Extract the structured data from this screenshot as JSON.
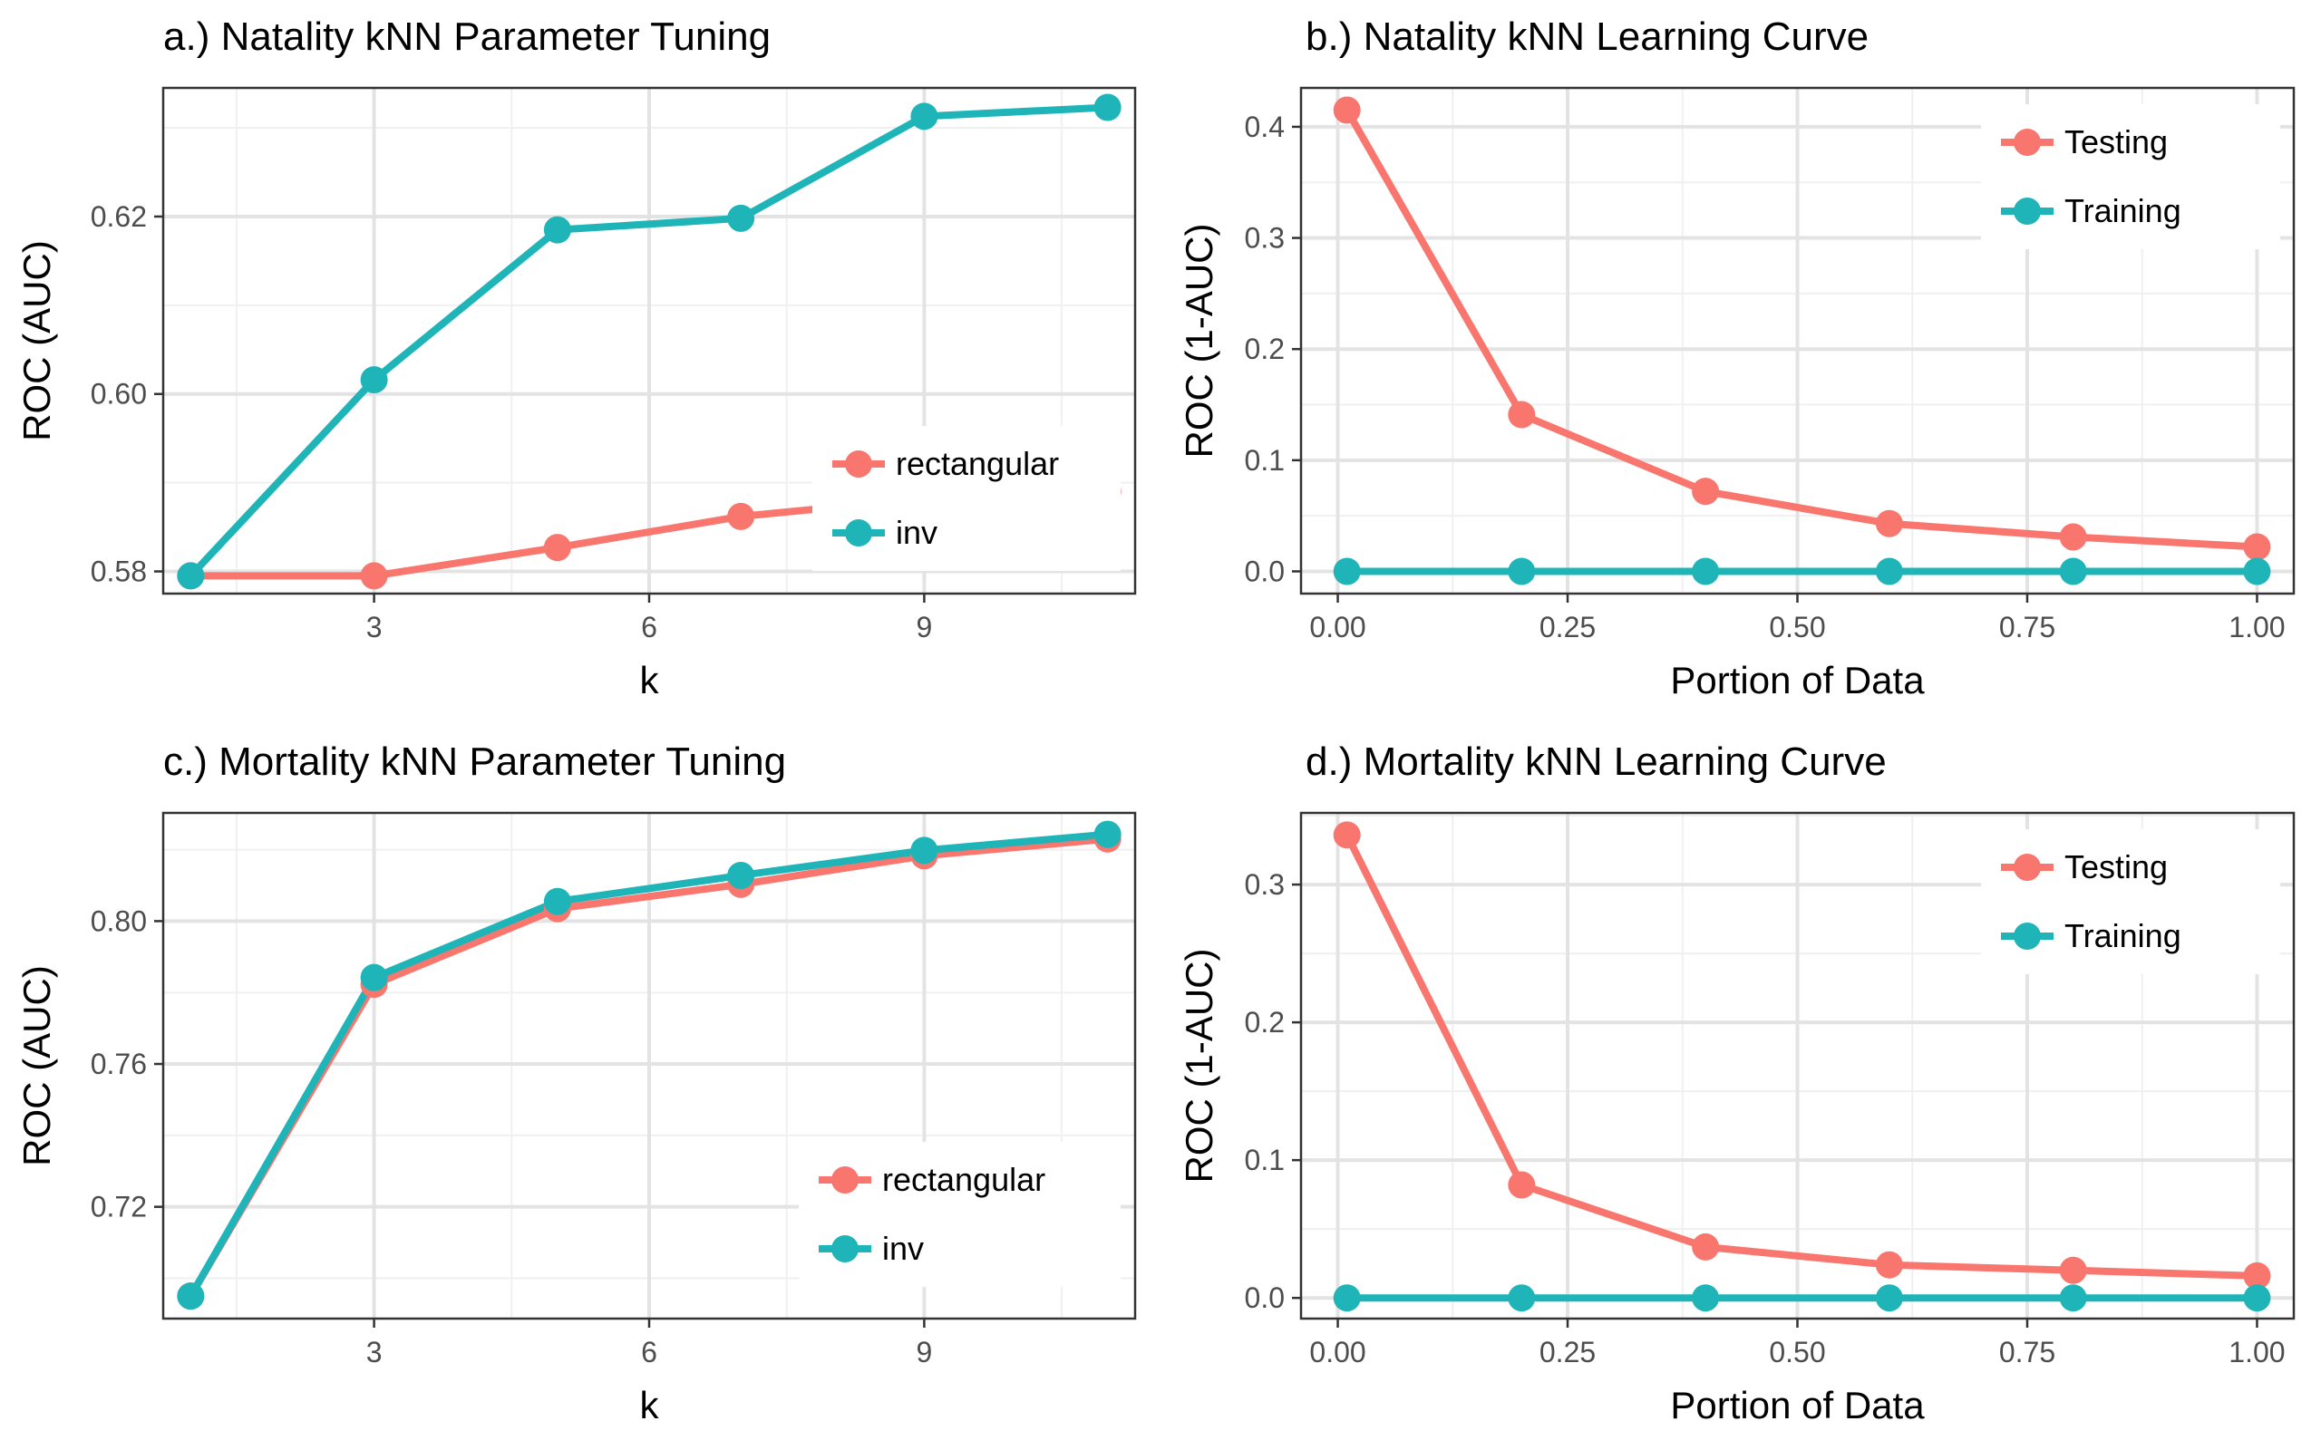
{
  "chart_data": [
    {
      "type": "line",
      "title": "a.) Natality kNN Parameter Tuning",
      "xlabel": "k",
      "ylabel": "ROC (AUC)",
      "xlim": [
        0.7,
        11.3
      ],
      "ylim": [
        0.5775,
        0.6345
      ],
      "xticks": [
        3,
        6,
        9
      ],
      "xtick_labels": [
        "3",
        "6",
        "9"
      ],
      "yticks": [
        0.58,
        0.6,
        0.62
      ],
      "ytick_labels": [
        "0.58",
        "0.60",
        "0.62"
      ],
      "x": [
        1,
        3,
        5,
        7,
        9,
        11
      ],
      "series": [
        {
          "name": "rectangular",
          "color": "#F8766D",
          "values": [
            0.5795,
            0.5795,
            0.5827,
            0.5862,
            0.5882,
            0.589
          ]
        },
        {
          "name": "inv",
          "color": "#1FB5B8",
          "values": [
            0.5795,
            0.6016,
            0.6185,
            0.6198,
            0.6313,
            0.6323
          ]
        }
      ],
      "grid": true,
      "legend_position": "bottom-right"
    },
    {
      "type": "line",
      "title": "b.) Natality kNN Learning Curve",
      "xlabel": "Portion of Data",
      "ylabel": "ROC (1-AUC)",
      "xlim": [
        -0.04,
        1.04
      ],
      "ylim": [
        -0.02,
        0.435
      ],
      "xticks": [
        0,
        0.25,
        0.5,
        0.75,
        1
      ],
      "xtick_labels": [
        "0.00",
        "0.25",
        "0.50",
        "0.75",
        "1.00"
      ],
      "yticks": [
        0,
        0.1,
        0.2,
        0.3,
        0.4
      ],
      "ytick_labels": [
        "0.0",
        "0.1",
        "0.2",
        "0.3",
        "0.4"
      ],
      "x": [
        0.01,
        0.2,
        0.4,
        0.6,
        0.8,
        1.0
      ],
      "series": [
        {
          "name": "Testing",
          "color": "#F8766D",
          "values": [
            0.415,
            0.141,
            0.072,
            0.043,
            0.031,
            0.022
          ]
        },
        {
          "name": "Training",
          "color": "#1FB5B8",
          "values": [
            0,
            0,
            0,
            0,
            0,
            0
          ]
        }
      ],
      "grid": true,
      "legend_position": "top-right"
    },
    {
      "type": "line",
      "title": "c.) Mortality kNN Parameter Tuning",
      "xlabel": "k",
      "ylabel": "ROC (AUC)",
      "xlim": [
        0.7,
        11.3
      ],
      "ylim": [
        0.6887,
        0.8303
      ],
      "xticks": [
        3,
        6,
        9
      ],
      "xtick_labels": [
        "3",
        "6",
        "9"
      ],
      "yticks": [
        0.72,
        0.76,
        0.8
      ],
      "ytick_labels": [
        "0.72",
        "0.76",
        "0.80"
      ],
      "x": [
        1,
        3,
        5,
        7,
        9,
        11
      ],
      "series": [
        {
          "name": "rectangular",
          "color": "#F8766D",
          "values": [
            0.695,
            0.7823,
            0.8035,
            0.8103,
            0.8183,
            0.823
          ]
        },
        {
          "name": "inv",
          "color": "#1FB5B8",
          "values": [
            0.695,
            0.7842,
            0.8055,
            0.8128,
            0.8198,
            0.8243
          ]
        }
      ],
      "grid": true,
      "legend_position": "bottom-right"
    },
    {
      "type": "line",
      "title": "d.) Mortality kNN Learning Curve",
      "xlabel": "Portion of Data",
      "ylabel": "ROC (1-AUC)",
      "xlim": [
        -0.04,
        1.04
      ],
      "ylim": [
        -0.015,
        0.352
      ],
      "xticks": [
        0,
        0.25,
        0.5,
        0.75,
        1
      ],
      "xtick_labels": [
        "0.00",
        "0.25",
        "0.50",
        "0.75",
        "1.00"
      ],
      "yticks": [
        0,
        0.1,
        0.2,
        0.3
      ],
      "ytick_labels": [
        "0.0",
        "0.1",
        "0.2",
        "0.3"
      ],
      "x": [
        0.01,
        0.2,
        0.4,
        0.6,
        0.8,
        1.0
      ],
      "series": [
        {
          "name": "Testing",
          "color": "#F8766D",
          "values": [
            0.336,
            0.082,
            0.037,
            0.024,
            0.02,
            0.016
          ]
        },
        {
          "name": "Training",
          "color": "#1FB5B8",
          "values": [
            0,
            0,
            0,
            0,
            0,
            0
          ]
        }
      ],
      "grid": true,
      "legend_position": "top-right"
    }
  ]
}
